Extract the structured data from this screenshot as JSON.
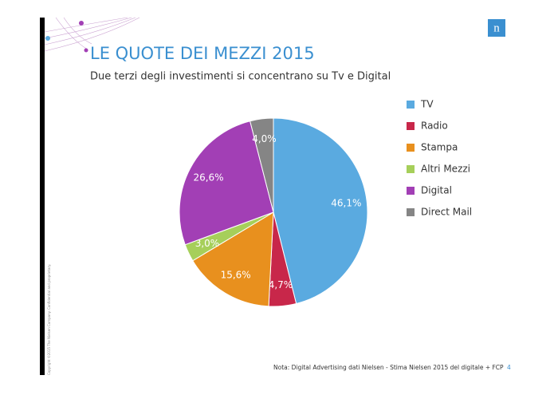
{
  "slide": {
    "title": "LE QUOTE DEI MEZZI 2015",
    "subtitle": "Due terzi degli investimenti si concentrano su Tv e Digital",
    "note": "Nota: Digital Advertising dati Nielsen - Stima Nielsen 2015 del digitale + FCP",
    "page": "4",
    "logo": "n",
    "copyright": "Copyright ©2015 The Nielsen Company. Confidential and proprietary."
  },
  "chart_data": {
    "type": "pie",
    "categories": [
      "TV",
      "Radio",
      "Stampa",
      "Altri Mezzi",
      "Digital",
      "Direct Mail"
    ],
    "values": [
      46.1,
      4.7,
      15.6,
      3.0,
      26.6,
      4.0
    ],
    "value_labels": [
      "46,1%",
      "4,7%",
      "15,6%",
      "3,0%",
      "26,6%",
      "4,0%"
    ],
    "colors": [
      "#5aaae0",
      "#c8274a",
      "#e8901e",
      "#a6cf5a",
      "#a23fb5",
      "#858585"
    ],
    "legend": "right"
  }
}
